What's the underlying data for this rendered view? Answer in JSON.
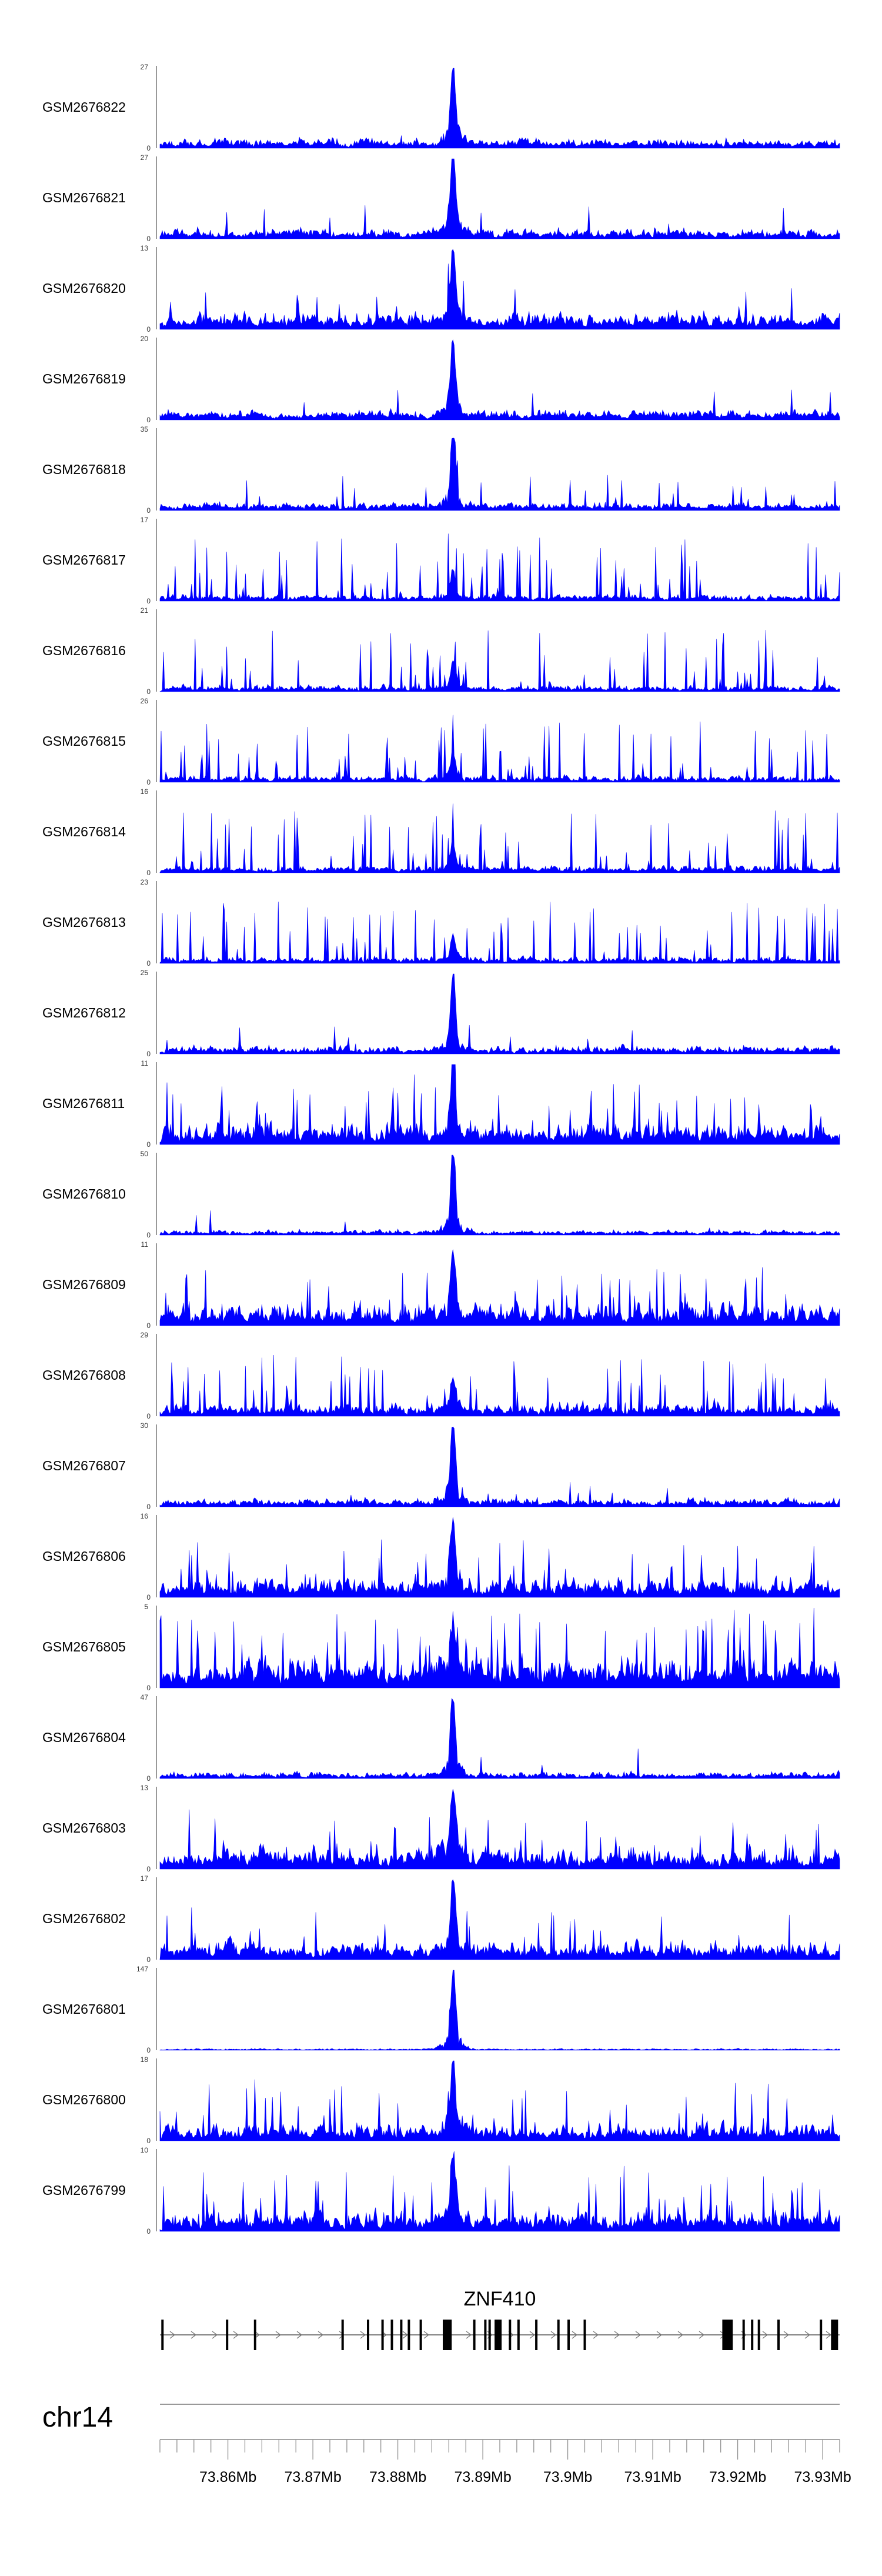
{
  "chart_data": {
    "type": "area",
    "chromosome": "chr14",
    "xlim": [
      73852000,
      73932000
    ],
    "x_ticks": [
      73860000,
      73870000,
      73880000,
      73890000,
      73900000,
      73910000,
      73920000,
      73930000
    ],
    "x_tick_labels": [
      "73.86Mb",
      "73.87Mb",
      "73.88Mb",
      "73.89Mb",
      "73.9Mb",
      "73.91Mb",
      "73.92Mb",
      "73.93Mb"
    ],
    "series": [
      {
        "name": "GSM2676822",
        "ymax": 27,
        "ymin_label": "0",
        "ymax_label": "27",
        "peak": 0.95,
        "noise": 0.12,
        "spiky": 0.05
      },
      {
        "name": "GSM2676821",
        "ymax": 27,
        "ymin_label": "0",
        "ymax_label": "27",
        "peak": 0.95,
        "noise": 0.12,
        "spiky": 0.08
      },
      {
        "name": "GSM2676820",
        "ymax": 13,
        "ymin_label": "0",
        "ymax_label": "13",
        "peak": 0.92,
        "noise": 0.2,
        "spiky": 0.15
      },
      {
        "name": "GSM2676819",
        "ymax": 20,
        "ymin_label": "0",
        "ymax_label": "20",
        "peak": 0.95,
        "noise": 0.12,
        "spiky": 0.05
      },
      {
        "name": "GSM2676818",
        "ymax": 35,
        "ymin_label": "0",
        "ymax_label": "35",
        "peak": 0.85,
        "noise": 0.1,
        "spiky": 0.25
      },
      {
        "name": "GSM2676817",
        "ymax": 17,
        "ymin_label": "0",
        "ymax_label": "17",
        "peak": 0.3,
        "noise": 0.08,
        "spiky": 0.7
      },
      {
        "name": "GSM2676816",
        "ymax": 21,
        "ymin_label": "0",
        "ymax_label": "21",
        "peak": 0.3,
        "noise": 0.08,
        "spiky": 0.7
      },
      {
        "name": "GSM2676815",
        "ymax": 26,
        "ymin_label": "0",
        "ymax_label": "26",
        "peak": 0.3,
        "noise": 0.08,
        "spiky": 0.65
      },
      {
        "name": "GSM2676814",
        "ymax": 16,
        "ymin_label": "0",
        "ymax_label": "16",
        "peak": 0.3,
        "noise": 0.08,
        "spiky": 0.7
      },
      {
        "name": "GSM2676813",
        "ymax": 23,
        "ymin_label": "0",
        "ymax_label": "23",
        "peak": 0.3,
        "noise": 0.08,
        "spiky": 0.7
      },
      {
        "name": "GSM2676812",
        "ymax": 25,
        "ymin_label": "0",
        "ymax_label": "25",
        "peak": 0.92,
        "noise": 0.1,
        "spiky": 0.12
      },
      {
        "name": "GSM2676811",
        "ymax": 11,
        "ymin_label": "0",
        "ymax_label": "11",
        "peak": 0.8,
        "noise": 0.25,
        "spiky": 0.5
      },
      {
        "name": "GSM2676810",
        "ymax": 50,
        "ymin_label": "0",
        "ymax_label": "50",
        "peak": 0.95,
        "noise": 0.06,
        "spiky": 0.04
      },
      {
        "name": "GSM2676809",
        "ymax": 11,
        "ymin_label": "0",
        "ymax_label": "11",
        "peak": 0.75,
        "noise": 0.25,
        "spiky": 0.5
      },
      {
        "name": "GSM2676808",
        "ymax": 29,
        "ymin_label": "0",
        "ymax_label": "29",
        "peak": 0.4,
        "noise": 0.15,
        "spiky": 0.6
      },
      {
        "name": "GSM2676807",
        "ymax": 30,
        "ymin_label": "0",
        "ymax_label": "30",
        "peak": 0.95,
        "noise": 0.1,
        "spiky": 0.06
      },
      {
        "name": "GSM2676806",
        "ymax": 16,
        "ymin_label": "0",
        "ymax_label": "16",
        "peak": 0.85,
        "noise": 0.22,
        "spiky": 0.45
      },
      {
        "name": "GSM2676805",
        "ymax": 5,
        "ymin_label": "0",
        "ymax_label": "5",
        "peak": 0.55,
        "noise": 0.35,
        "spiky": 0.7
      },
      {
        "name": "GSM2676804",
        "ymax": 47,
        "ymin_label": "0",
        "ymax_label": "47",
        "peak": 0.95,
        "noise": 0.08,
        "spiky": 0.05
      },
      {
        "name": "GSM2676803",
        "ymax": 13,
        "ymin_label": "0",
        "ymax_label": "13",
        "peak": 0.9,
        "noise": 0.25,
        "spiky": 0.4
      },
      {
        "name": "GSM2676802",
        "ymax": 17,
        "ymin_label": "0",
        "ymax_label": "17",
        "peak": 0.92,
        "noise": 0.22,
        "spiky": 0.35
      },
      {
        "name": "GSM2676801",
        "ymax": 147,
        "ymin_label": "0",
        "ymax_label": "147",
        "peak": 0.95,
        "noise": 0.02,
        "spiky": 0.01
      },
      {
        "name": "GSM2676800",
        "ymax": 18,
        "ymin_label": "0",
        "ymax_label": "18",
        "peak": 0.85,
        "noise": 0.2,
        "spiky": 0.45
      },
      {
        "name": "GSM2676799",
        "ymax": 10,
        "ymin_label": "0",
        "ymax_label": "10",
        "peak": 0.8,
        "noise": 0.25,
        "spiky": 0.6
      }
    ],
    "gene": {
      "name": "ZNF410",
      "exons": [
        73852300,
        73859900,
        73863200,
        73873500,
        73876500,
        73878200,
        73879300,
        73880400,
        73881300,
        73882700,
        73885700,
        73886200,
        73889000,
        73890300,
        73890800,
        73891800,
        73893200,
        73894200,
        73896300,
        73898900,
        73900100,
        73902000,
        73918600,
        73919000,
        73920700,
        73921700,
        73922500,
        73924800,
        73929800,
        73931400
      ]
    },
    "peak_position": 73886500,
    "colors": {
      "signal": "#0000ff",
      "axis": "#000000",
      "gene": "#000000",
      "ideogram": "#999999"
    }
  }
}
